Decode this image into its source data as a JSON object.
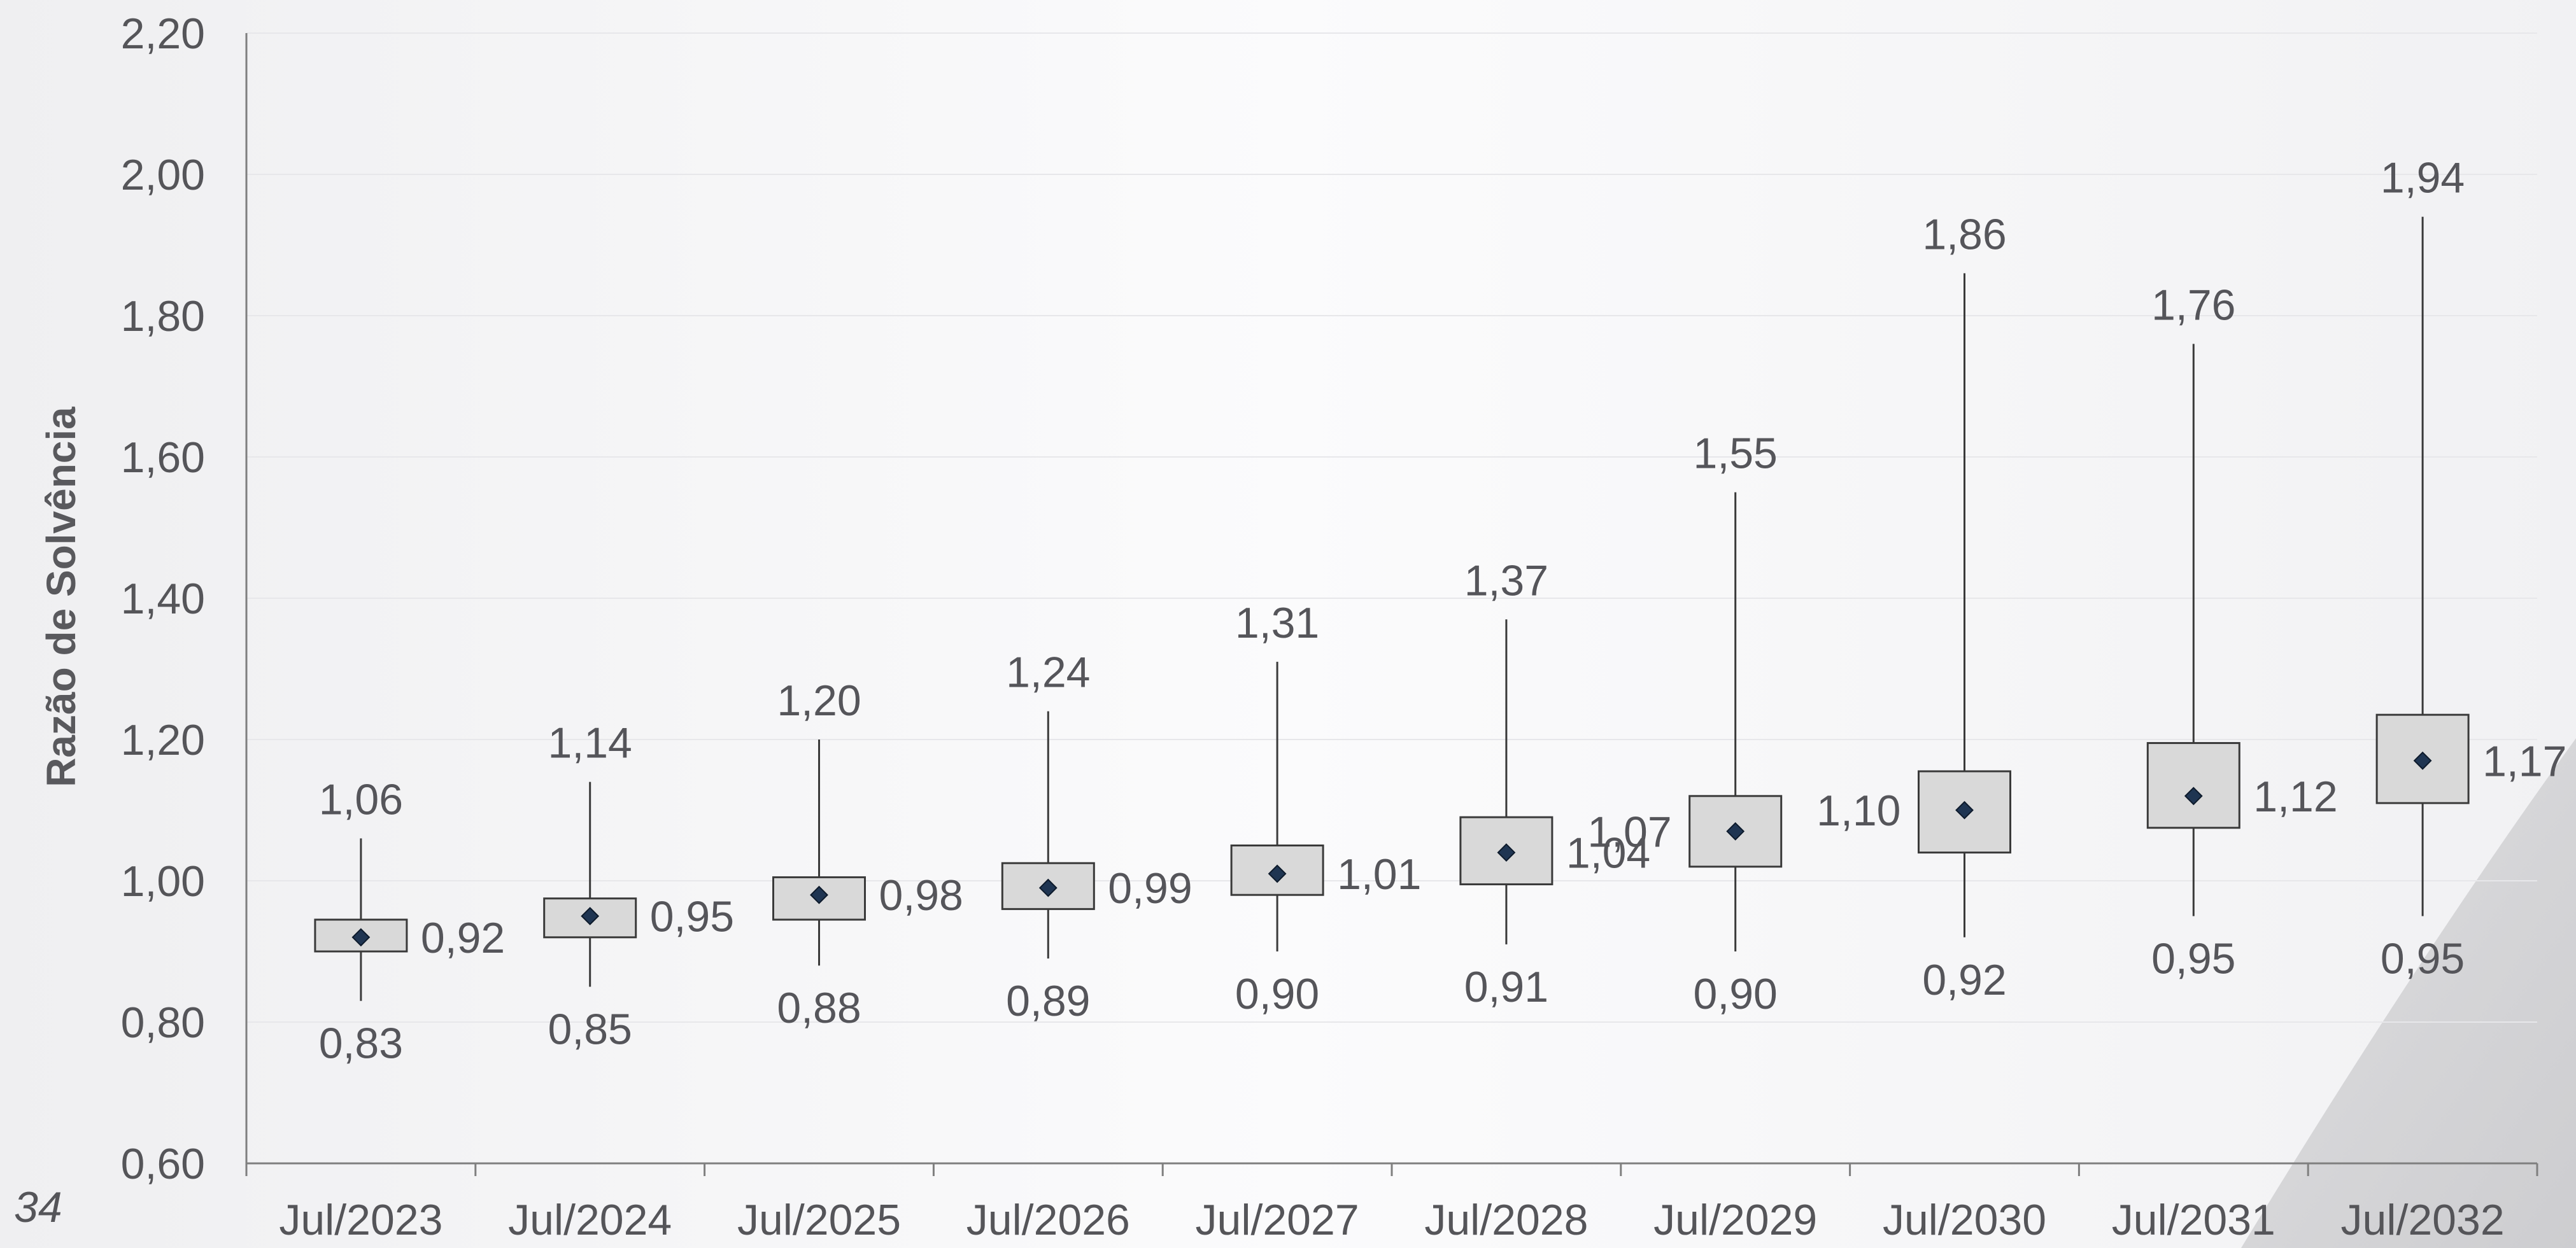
{
  "page": {
    "number": "34"
  },
  "colors": {
    "box_fill": "#d9d9d9",
    "box_stroke": "#3a3a3a",
    "marker": "#1f3552",
    "axis": "#7f7f7f",
    "grid": "#e7e7ea",
    "text": "#555559"
  },
  "chart_data": {
    "type": "boxplot",
    "ylabel": "Razão de Solvência",
    "ylim": [
      0.6,
      2.2
    ],
    "yticks": [
      "0,60",
      "0,80",
      "1,00",
      "1,20",
      "1,40",
      "1,60",
      "1,80",
      "2,00",
      "2,20"
    ],
    "grid": true,
    "categories": [
      "Jul/2023",
      "Jul/2024",
      "Jul/2025",
      "Jul/2026",
      "Jul/2027",
      "Jul/2028",
      "Jul/2029",
      "Jul/2030",
      "Jul/2031",
      "Jul/2032"
    ],
    "series": [
      {
        "min": [
          0.83,
          0.85,
          0.88,
          0.89,
          0.9,
          0.91,
          0.9,
          0.92,
          0.95,
          0.95
        ],
        "q1": [
          0.9,
          0.92,
          0.945,
          0.96,
          0.98,
          0.995,
          1.02,
          1.04,
          1.075,
          1.11
        ],
        "median": [
          0.92,
          0.95,
          0.98,
          0.99,
          1.01,
          1.04,
          1.07,
          1.1,
          1.12,
          1.17
        ],
        "q3": [
          0.945,
          0.975,
          1.005,
          1.025,
          1.05,
          1.09,
          1.12,
          1.155,
          1.195,
          1.235
        ],
        "max": [
          1.06,
          1.14,
          1.2,
          1.24,
          1.31,
          1.37,
          1.55,
          1.86,
          1.76,
          1.94
        ],
        "labels_min": [
          "0,83",
          "0,85",
          "0,88",
          "0,89",
          "0,90",
          "0,91",
          "0,90",
          "0,92",
          "0,95",
          "0,95"
        ],
        "labels_median": [
          "0,92",
          "0,95",
          "0,98",
          "0,99",
          "1,01",
          "1,04",
          "1,07",
          "1,10",
          "1,12",
          "1,17"
        ],
        "labels_max": [
          "1,06",
          "1,14",
          "1,20",
          "1,24",
          "1,31",
          "1,37",
          "1,55",
          "1,86",
          "1,76",
          "1,94"
        ]
      }
    ]
  }
}
